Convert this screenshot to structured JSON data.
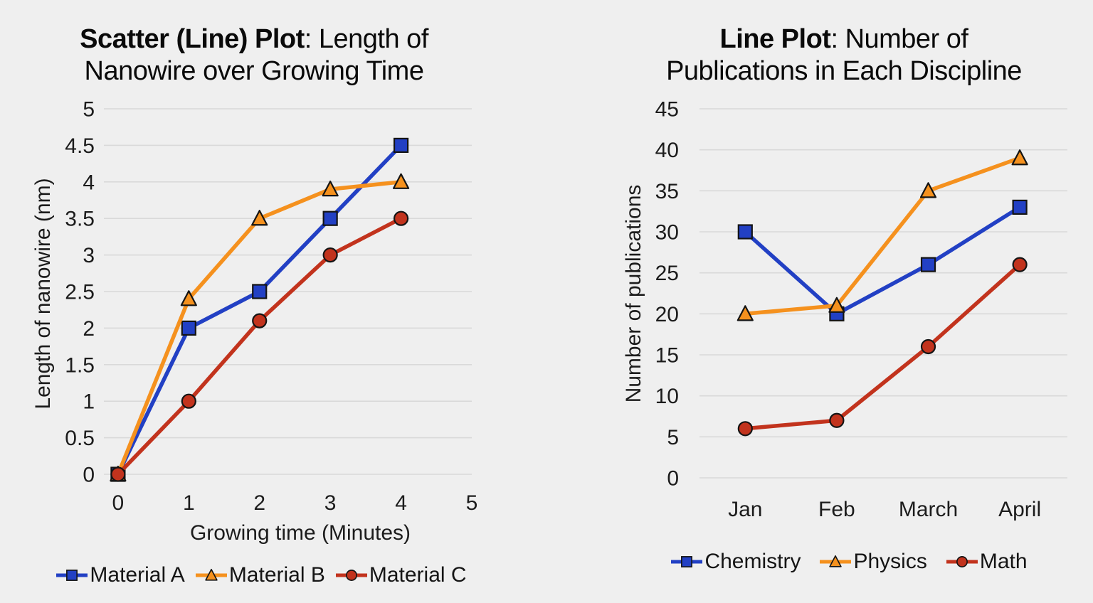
{
  "page": {
    "background": "#efefef",
    "text_color": "#1c1c1c",
    "title_color": "#0a0a0a",
    "grid_color": "#d9d9d9",
    "marker_border": "#141414"
  },
  "chart_data": [
    {
      "type": "line",
      "title_bold": "Scatter (Line) Plot",
      "title_rest": ": Length of\nNanowire over Growing Time",
      "xlabel": "Growing time (Minutes)",
      "ylabel": "Length of nanowire (nm)",
      "x": [
        0,
        1,
        2,
        3,
        4
      ],
      "xticks": [
        0,
        1,
        2,
        3,
        4,
        5
      ],
      "xlim": [
        -0.2,
        5
      ],
      "ylim": [
        0,
        5
      ],
      "yticks": [
        5,
        4.5,
        4,
        3.5,
        3,
        2.5,
        2,
        1.5,
        1,
        0.5,
        0
      ],
      "grid": true,
      "legend_position": "bottom",
      "series": [
        {
          "name": "Material A",
          "marker": "square",
          "color": "#2240c4",
          "values": [
            0,
            2,
            2.5,
            3.5,
            4.5
          ]
        },
        {
          "name": "Material B",
          "marker": "triangle",
          "color": "#f5911e",
          "values": [
            0,
            2.4,
            3.5,
            3.9,
            4
          ]
        },
        {
          "name": "Material C",
          "marker": "circle",
          "color": "#c2331d",
          "values": [
            0,
            1,
            2.1,
            3,
            3.5
          ]
        }
      ]
    },
    {
      "type": "line",
      "title_bold": "Line Plot",
      "title_rest": ": Number of\nPublications in Each Discipline",
      "xlabel": "",
      "ylabel": "Number of publications",
      "categories": [
        "Jan",
        "Feb",
        "March",
        "April"
      ],
      "xlim": [
        -0.5,
        3.52
      ],
      "ylim": [
        0,
        45
      ],
      "yticks": [
        45,
        40,
        35,
        30,
        25,
        20,
        15,
        10,
        5,
        0
      ],
      "grid": true,
      "legend_position": "bottom",
      "series": [
        {
          "name": "Chemistry",
          "marker": "square",
          "color": "#2240c4",
          "values": [
            30,
            20,
            26,
            33
          ]
        },
        {
          "name": "Physics",
          "marker": "triangle",
          "color": "#f5911e",
          "values": [
            20,
            21,
            35,
            39
          ]
        },
        {
          "name": "Math",
          "marker": "circle",
          "color": "#c2331d",
          "values": [
            6,
            7,
            16,
            26
          ]
        }
      ]
    }
  ]
}
